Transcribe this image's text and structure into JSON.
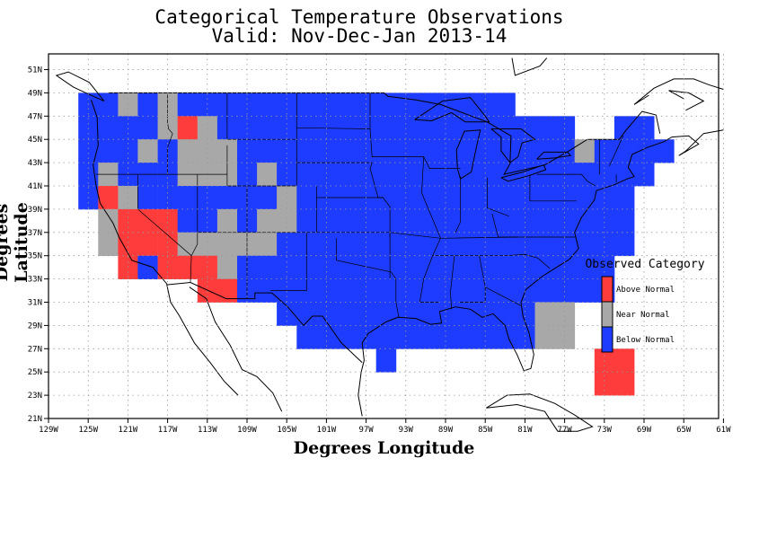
{
  "title": {
    "line1": "Categorical Temperature Observations",
    "line2": "Valid: Nov-Dec-Jan 2013-14"
  },
  "axes": {
    "xlabel": "Degrees Longitude",
    "ylabel": "Degrees Latitude",
    "x_ticks": [
      "129W",
      "125W",
      "121W",
      "117W",
      "113W",
      "109W",
      "105W",
      "101W",
      "97W",
      "93W",
      "89W",
      "85W",
      "81W",
      "77W",
      "73W",
      "69W",
      "65W",
      "61W"
    ],
    "y_ticks": [
      "51N",
      "49N",
      "47N",
      "45N",
      "43N",
      "41N",
      "39N",
      "37N",
      "35N",
      "33N",
      "31N",
      "29N",
      "27N",
      "25N",
      "23N",
      "21N"
    ],
    "lon_range": [
      -129,
      -61
    ],
    "lat_range": [
      21,
      52
    ],
    "grid": true
  },
  "legend": {
    "title": "Observed Category",
    "placement": "right",
    "items": [
      {
        "label": "Above Normal",
        "color": "#ff3c3c"
      },
      {
        "label": "Near Normal",
        "color": "#a8a8a8"
      },
      {
        "label": "Below Normal",
        "color": "#1e3cff"
      }
    ]
  },
  "category_map": {
    "cell_deg": 2,
    "lon_start": -126,
    "lat_top": 49,
    "codes": "A = Above Normal, N = Near Normal, B = Below Normal",
    "rows": [
      "BBNBNBBBBBBBBBBBBBBBBB..........",
      "BBBBNANBBBBBBBBBBBBBBBBBB..BB...",
      "BBBNBNNNBBBBBBBBBBBBBBBBBNBBBB..",
      "BNBBBNNNBNBBBBBBBBBBBBBBBBBBB...",
      "BANBBBBBBBNBBBBBBBBBBBBBBBBB....",
      ".NAAABBNBNNBBBBBBBBBBBBBBBBB....",
      ".NAAANNNNNBBBBBBBBBBBBBBBBBB....",
      "..ABAAANBBBBBBBBBBBBBBBBBBB.....",
      "......AABBBBBBBBBBBBBBBBBBB.....",
      "..........BBBBBBBBBBBBBNN.......",
      "...........BBBBBBBBBBBBNN.......",
      "...............B..........AA....",
      "..........................AA...."
    ]
  },
  "chart_data": {
    "type": "heatmap",
    "title": "Categorical Temperature Observations",
    "subtitle": "Valid: Nov-Dec-Jan 2013-14",
    "xlabel": "Degrees Longitude",
    "ylabel": "Degrees Latitude",
    "xlim": [
      -129,
      -61
    ],
    "ylim": [
      21,
      52
    ],
    "categories": [
      "Above Normal",
      "Near Normal",
      "Below Normal"
    ],
    "colors": [
      "#ff3c3c",
      "#a8a8a8",
      "#1e3cff"
    ]
  }
}
